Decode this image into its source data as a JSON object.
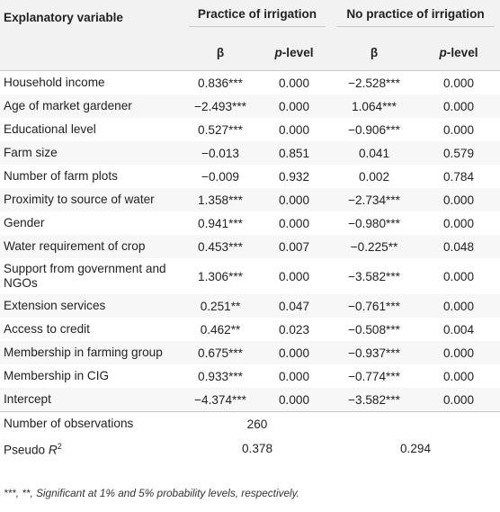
{
  "headers": {
    "variable": "Explanatory variable",
    "group1": "Practice of irrigation",
    "group2": "No practice of irrigation",
    "beta": "β",
    "p_italic": "p",
    "p_suffix": "-level"
  },
  "rows": [
    {
      "label": "Household income",
      "b1": "0.836***",
      "p1": "0.000",
      "b2": "−2.528***",
      "p2": "0.000"
    },
    {
      "label": "Age of market gardener",
      "b1": "−2.493***",
      "p1": "0.000",
      "b2": "1.064***",
      "p2": "0.000"
    },
    {
      "label": "Educational level",
      "b1": "0.527***",
      "p1": "0.000",
      "b2": "−0.906***",
      "p2": "0.000"
    },
    {
      "label": "Farm size",
      "b1": "−0.013",
      "p1": "0.851",
      "b2": "0.041",
      "p2": "0.579"
    },
    {
      "label": "Number of farm plots",
      "b1": "−0.009",
      "p1": "0.932",
      "b2": "0.002",
      "p2": "0.784"
    },
    {
      "label": "Proximity to source of water",
      "b1": "1.358***",
      "p1": "0.000",
      "b2": "−2.734***",
      "p2": "0.000"
    },
    {
      "label": "Gender",
      "b1": "0.941***",
      "p1": "0.000",
      "b2": "−0.980***",
      "p2": "0.000"
    },
    {
      "label": "Water requirement of crop",
      "b1": "0.453***",
      "p1": "0.007",
      "b2": "−0.225**",
      "p2": "0.048"
    },
    {
      "label": "Support from government and NGOs",
      "b1": "1.306***",
      "p1": "0.000",
      "b2": "−3.582***",
      "p2": "0.000"
    },
    {
      "label": "Extension services",
      "b1": "0.251**",
      "p1": "0.047",
      "b2": "−0.761***",
      "p2": "0.000"
    },
    {
      "label": "Access to credit",
      "b1": "0.462**",
      "p1": "0.023",
      "b2": "−0.508***",
      "p2": "0.004"
    },
    {
      "label": "Membership in farming group",
      "b1": "0.675***",
      "p1": "0.000",
      "b2": "−0.937***",
      "p2": "0.000"
    },
    {
      "label": "Membership in CIG",
      "b1": "0.933***",
      "p1": "0.000",
      "b2": "−0.774***",
      "p2": "0.000"
    },
    {
      "label": "Intercept",
      "b1": "−4.374***",
      "p1": "0.000",
      "b2": "−3.582***",
      "p2": "0.000"
    }
  ],
  "observations": {
    "label": "Number of observations",
    "value": "260"
  },
  "pseudo_r2": {
    "label_base": "Pseudo ",
    "label_italic": "R",
    "label_sup": "2",
    "value1": "0.378",
    "value2": "0.294"
  },
  "footnote": "***, **, Significant at 1% and 5% probability levels, respectively."
}
